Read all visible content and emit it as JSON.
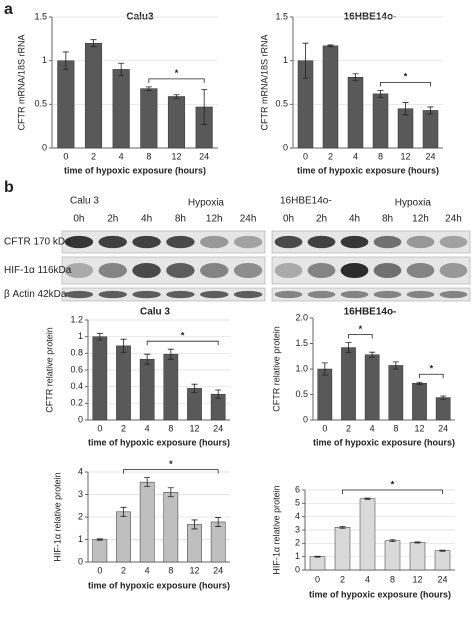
{
  "panels": [
    "a",
    "b"
  ],
  "blots": [
    {
      "title": "Calu 3",
      "condition": "Hypoxia",
      "lanes": [
        "0h",
        "2h",
        "4h",
        "8h",
        "12h",
        "24h"
      ],
      "rows": [
        "CFTR 170 kDa",
        "HIF-1α 116kDa",
        "β Actin 42kDa"
      ]
    },
    {
      "title": "16HBE14o-",
      "condition": "Hypoxia",
      "lanes": [
        "0h",
        "2h",
        "4h",
        "8h",
        "12h",
        "24h"
      ]
    }
  ],
  "chart_data": [
    {
      "type": "bar",
      "title": "Calu3",
      "ylabel": "CFTR mRNA/18S rRNA",
      "xlabel": "time of hypoxic exposure (hours)",
      "categories": [
        "0",
        "2",
        "4",
        "8",
        "12",
        "24"
      ],
      "values": [
        1.0,
        1.2,
        0.9,
        0.68,
        0.59,
        0.47
      ],
      "errors": [
        0.1,
        0.04,
        0.07,
        0.02,
        0.02,
        0.2
      ],
      "color": "#595959",
      "ylim": [
        0,
        1.5
      ],
      "yticks": [
        0,
        0.5,
        1,
        1.5
      ],
      "grid": true,
      "annotations": [
        {
          "text": "*",
          "from": "8",
          "to": "24"
        }
      ]
    },
    {
      "type": "bar",
      "title": "16HBE14o-",
      "ylabel": "CFTR mRNA/18S rRNA",
      "xlabel": "time of hypoxic exposure (hours)",
      "categories": [
        "0",
        "2",
        "4",
        "8",
        "12",
        "24"
      ],
      "values": [
        1.0,
        1.17,
        0.81,
        0.62,
        0.45,
        0.43
      ],
      "errors": [
        0.2,
        0.01,
        0.04,
        0.04,
        0.07,
        0.04
      ],
      "color": "#595959",
      "ylim": [
        0,
        1.5
      ],
      "yticks": [
        0,
        0.5,
        1,
        1.5
      ],
      "grid": true,
      "annotations": [
        {
          "text": "*",
          "from": "8",
          "to": "24"
        }
      ]
    },
    {
      "type": "bar",
      "title": "Calu 3",
      "ylabel": "CFTR relative protein",
      "xlabel": "time of hypoxic exposure (hours)",
      "categories": [
        "0",
        "2",
        "4",
        "8",
        "12",
        "24"
      ],
      "values": [
        1.0,
        0.89,
        0.73,
        0.79,
        0.38,
        0.31
      ],
      "errors": [
        0.04,
        0.08,
        0.06,
        0.06,
        0.05,
        0.05
      ],
      "color": "#595959",
      "ylim": [
        0,
        1.2
      ],
      "yticks": [
        0,
        0.2,
        0.4,
        0.6,
        0.8,
        1,
        1.2
      ],
      "grid": true,
      "annotations": [
        {
          "text": "*",
          "from": "4",
          "to": "24"
        }
      ]
    },
    {
      "type": "bar",
      "title": "16HBE14o-",
      "ylabel": "CFTR relative protein",
      "xlabel": "time of hypoxic exposure (hours)",
      "categories": [
        "0",
        "2",
        "4",
        "8",
        "12",
        "24"
      ],
      "values": [
        1.0,
        1.42,
        1.28,
        1.07,
        0.72,
        0.44
      ],
      "errors": [
        0.12,
        0.1,
        0.05,
        0.07,
        0.02,
        0.03
      ],
      "color": "#595959",
      "ylim": [
        0,
        2
      ],
      "yticks": [
        0,
        0.5,
        {
          "value": 1,
          "label": "1.0"
        },
        1.5,
        {
          "value": 2,
          "label": "2.0"
        }
      ],
      "grid": false,
      "annotations": [
        {
          "text": "*",
          "from": "2",
          "to": "4"
        },
        {
          "text": "*",
          "from": "12",
          "to": "24"
        }
      ]
    },
    {
      "type": "bar",
      "ylabel": "HIF-1α  relative protein",
      "xlabel": "time of hypoxic exposure (hours)",
      "categories": [
        "0",
        "2",
        "4",
        "8",
        "12",
        "24"
      ],
      "values": [
        1.0,
        2.23,
        3.55,
        3.1,
        1.67,
        1.78
      ],
      "errors": [
        0.03,
        0.2,
        0.2,
        0.2,
        0.2,
        0.2
      ],
      "color": "#bfbfbf",
      "ylim": [
        0,
        4
      ],
      "yticks": [
        0,
        1,
        2,
        3,
        4
      ],
      "grid": true,
      "annotations": [
        {
          "text": "*",
          "from": "2",
          "to": "24"
        }
      ]
    },
    {
      "type": "bar",
      "ylabel": "HIF-1α relative protein",
      "xlabel": "time of hypoxic exposure (hours)",
      "categories": [
        "0",
        "2",
        "4",
        "8",
        "12",
        "24"
      ],
      "values": [
        1.0,
        3.2,
        5.35,
        2.2,
        2.07,
        1.45
      ],
      "errors": [
        0.03,
        0.07,
        0.05,
        0.07,
        0.04,
        0.04
      ],
      "color": "#d9d9d9",
      "ylim": [
        0,
        6
      ],
      "yticks": [
        0,
        1,
        2,
        3,
        4,
        5,
        6
      ],
      "grid": true,
      "annotations": [
        {
          "text": "*",
          "from": "2",
          "to": "24"
        }
      ]
    }
  ]
}
